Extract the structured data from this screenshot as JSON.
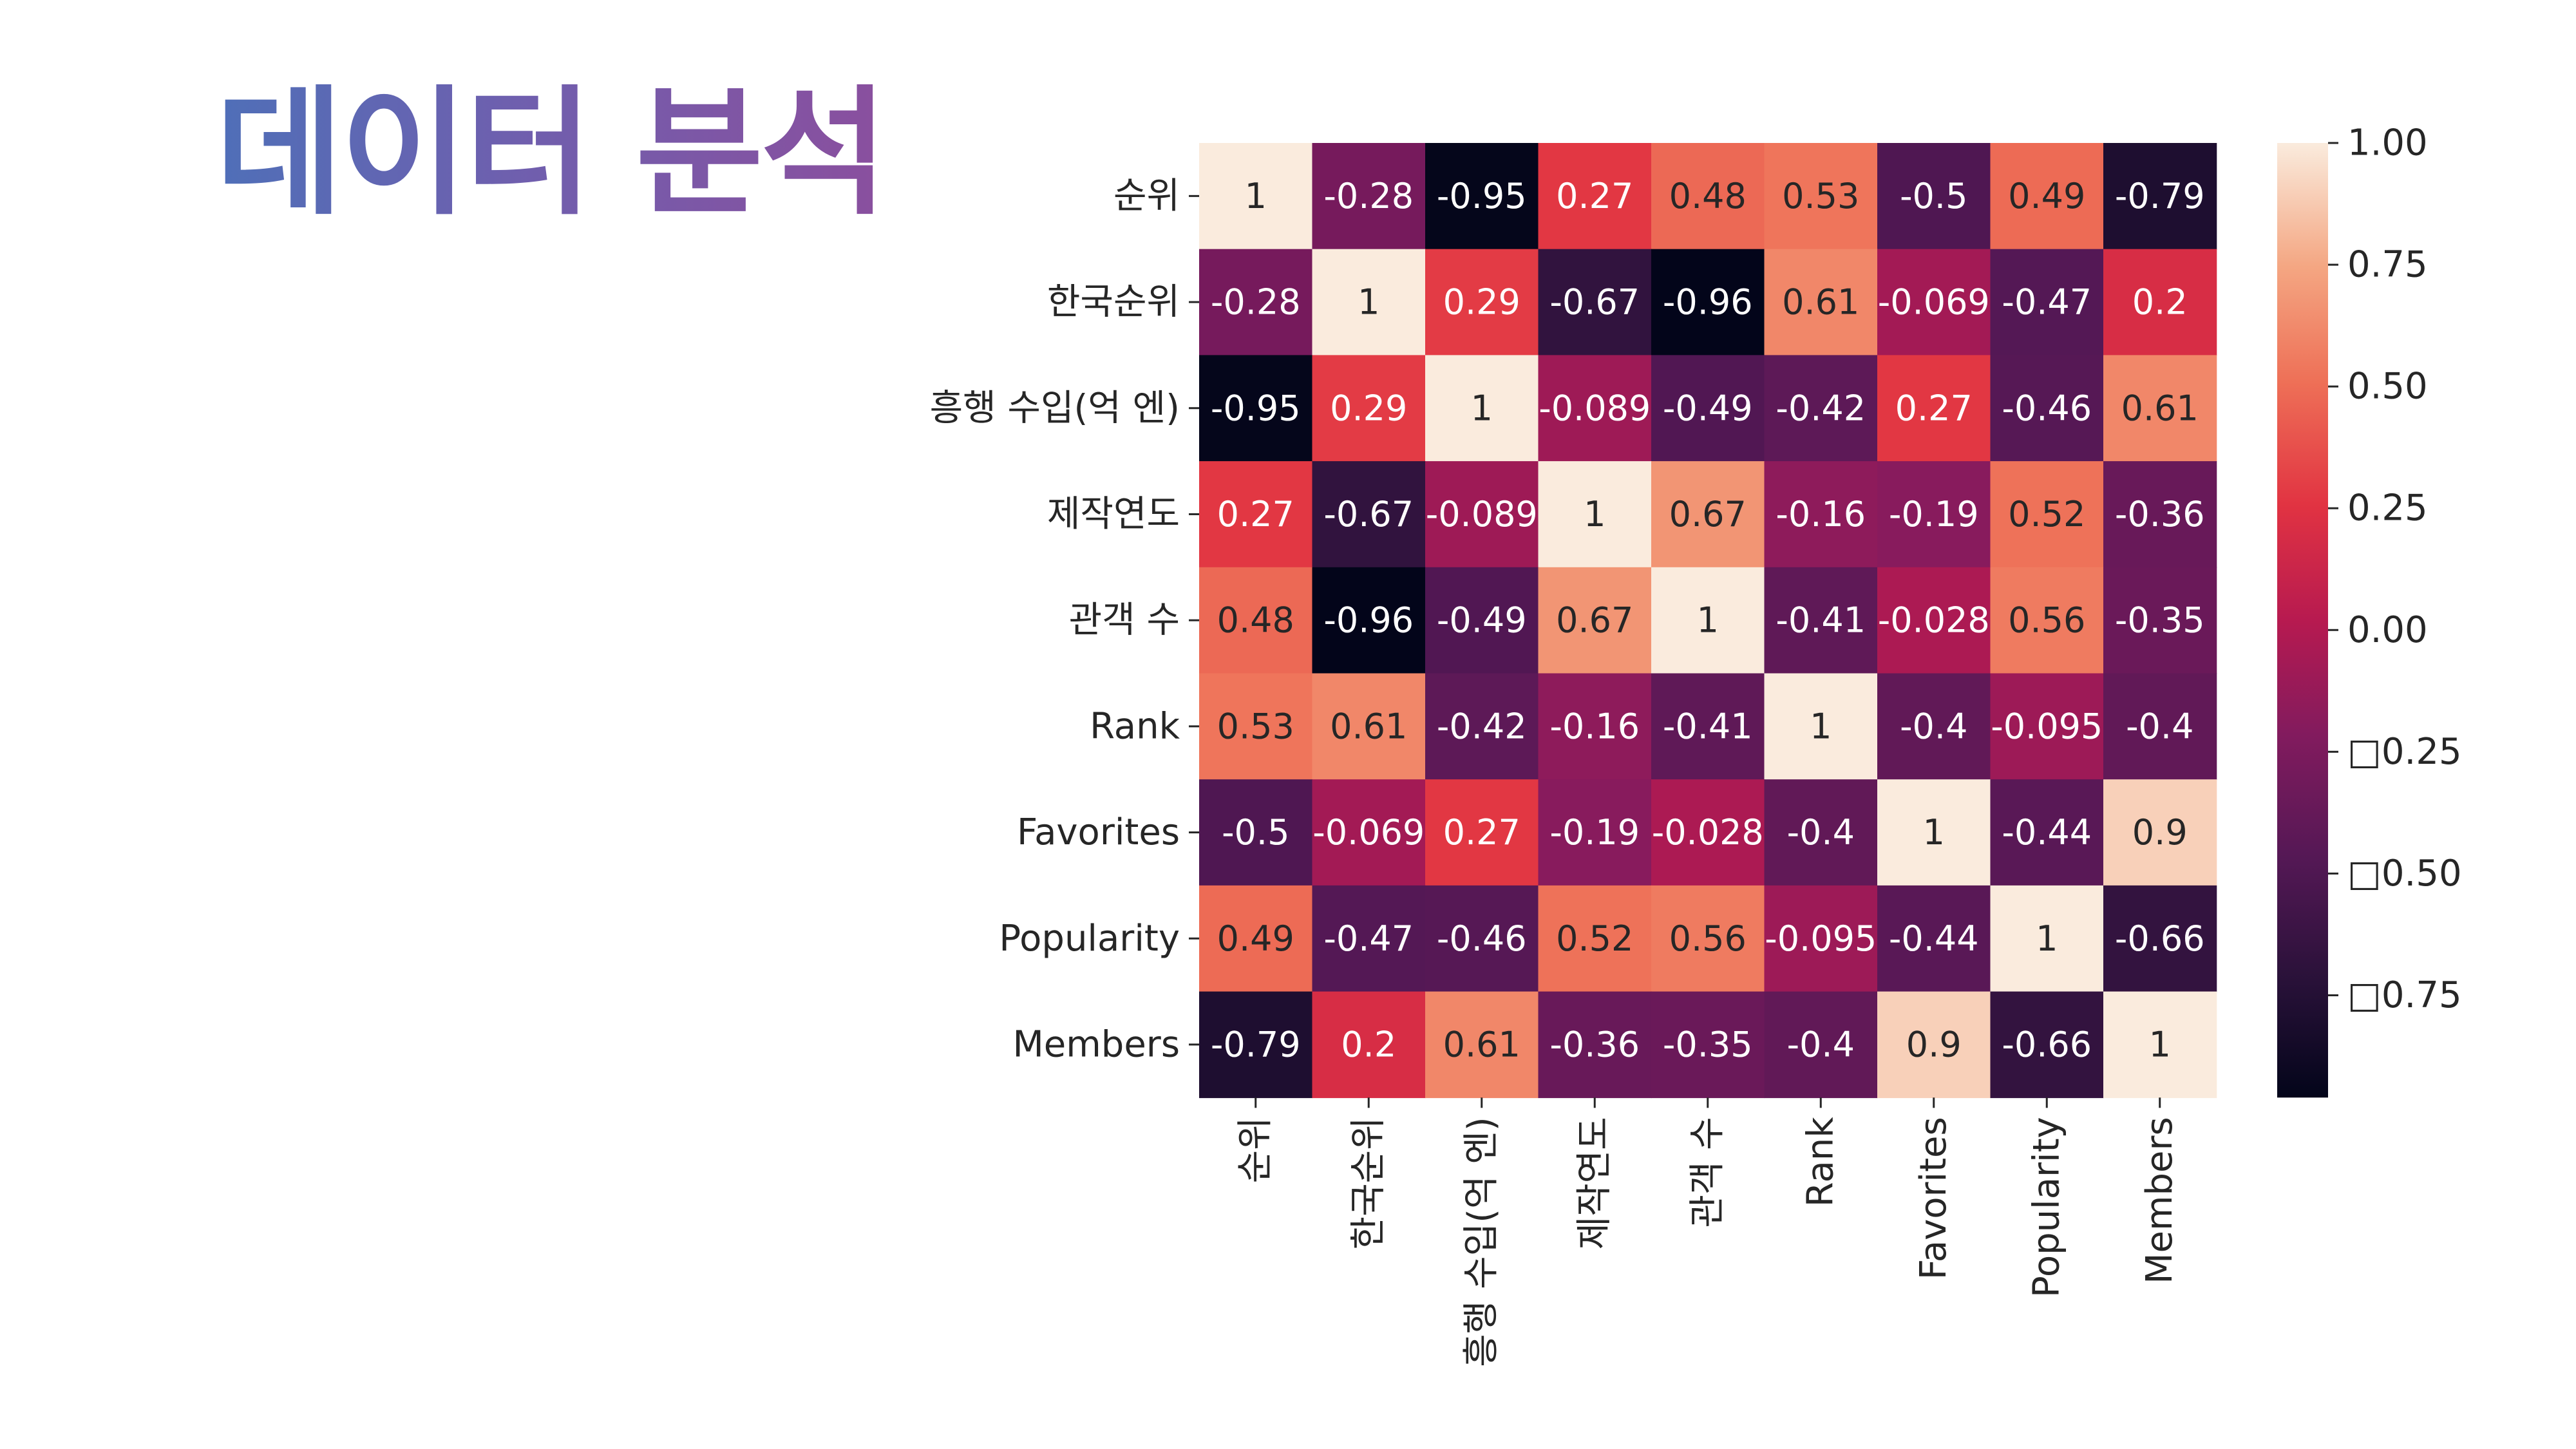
{
  "slide": {
    "title": "데이터 분석"
  },
  "chart_data": {
    "type": "heatmap",
    "title": "",
    "labels": [
      "순위",
      "한국순위",
      "흥행 수입(억 엔)",
      "제작연도",
      "관객 수",
      "Rank",
      "Favorites",
      "Popularity",
      "Members"
    ],
    "matrix": [
      [
        1,
        -0.28,
        -0.95,
        0.27,
        0.48,
        0.53,
        -0.5,
        0.49,
        -0.79
      ],
      [
        -0.28,
        1,
        0.29,
        -0.67,
        -0.96,
        0.61,
        -0.069,
        -0.47,
        0.2
      ],
      [
        -0.95,
        0.29,
        1,
        -0.089,
        -0.49,
        -0.42,
        0.27,
        -0.46,
        0.61
      ],
      [
        0.27,
        -0.67,
        -0.089,
        1,
        0.67,
        -0.16,
        -0.19,
        0.52,
        -0.36
      ],
      [
        0.48,
        -0.96,
        -0.49,
        0.67,
        1,
        -0.41,
        -0.028,
        0.56,
        -0.35
      ],
      [
        0.53,
        0.61,
        -0.42,
        -0.16,
        -0.41,
        1,
        -0.4,
        -0.095,
        -0.4
      ],
      [
        -0.5,
        -0.069,
        0.27,
        -0.19,
        -0.028,
        -0.4,
        1,
        -0.44,
        0.9
      ],
      [
        0.49,
        -0.47,
        -0.46,
        0.52,
        0.56,
        -0.095,
        -0.44,
        1,
        -0.66
      ],
      [
        -0.79,
        0.2,
        0.61,
        -0.36,
        -0.35,
        -0.4,
        0.9,
        -0.66,
        1
      ]
    ],
    "annotations": [
      [
        "1",
        "-0.28",
        "-0.95",
        "0.27",
        "0.48",
        "0.53",
        "-0.5",
        "0.49",
        "-0.79"
      ],
      [
        "-0.28",
        "1",
        "0.29",
        "-0.67",
        "-0.96",
        "0.61",
        "-0.069",
        "-0.47",
        "0.2"
      ],
      [
        "-0.95",
        "0.29",
        "1",
        "-0.089",
        "-0.49",
        "-0.42",
        "0.27",
        "-0.46",
        "0.61"
      ],
      [
        "0.27",
        "-0.67",
        "-0.089",
        "1",
        "0.67",
        "-0.16",
        "-0.19",
        "0.52",
        "-0.36"
      ],
      [
        "0.48",
        "-0.96",
        "-0.49",
        "0.67",
        "1",
        "-0.41",
        "-0.028",
        "0.56",
        "-0.35"
      ],
      [
        "0.53",
        "0.61",
        "-0.42",
        "-0.16",
        "-0.41",
        "1",
        "-0.4",
        "-0.095",
        "-0.4"
      ],
      [
        "-0.5",
        "-0.069",
        "0.27",
        "-0.19",
        "-0.028",
        "-0.4",
        "1",
        "-0.44",
        "0.9"
      ],
      [
        "0.49",
        "-0.47",
        "-0.46",
        "0.52",
        "0.56",
        "-0.095",
        "-0.44",
        "1",
        "-0.66"
      ],
      [
        "-0.79",
        "0.2",
        "0.61",
        "-0.36",
        "-0.35",
        "-0.4",
        "0.9",
        "-0.66",
        "1"
      ]
    ],
    "colorbar": {
      "range": [
        -0.96,
        1
      ],
      "ticks": [
        1.0,
        0.75,
        0.5,
        0.25,
        0.0,
        -0.25,
        -0.5,
        -0.75
      ],
      "tick_labels": [
        "1.00",
        "0.75",
        "0.50",
        "0.25",
        "0.00",
        "□0.25",
        "□0.50",
        "□0.75"
      ]
    },
    "colormap": "rocket",
    "legend_position": "right"
  }
}
